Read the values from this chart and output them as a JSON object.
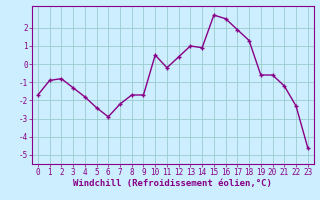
{
  "x": [
    0,
    1,
    2,
    3,
    4,
    5,
    6,
    7,
    8,
    9,
    10,
    11,
    12,
    13,
    14,
    15,
    16,
    17,
    18,
    19,
    20,
    21,
    22,
    23
  ],
  "y": [
    -1.7,
    -0.9,
    -0.8,
    -1.3,
    -1.8,
    -2.4,
    -2.9,
    -2.2,
    -1.7,
    -1.7,
    0.5,
    -0.2,
    0.4,
    1.0,
    0.9,
    2.7,
    2.5,
    1.9,
    1.3,
    -0.6,
    -0.6,
    -1.2,
    -2.3,
    -4.6
  ],
  "line_color": "#880088",
  "marker": "+",
  "marker_size": 3,
  "bg_color": "#cceeff",
  "grid_color": "#99cccc",
  "xlabel": "Windchill (Refroidissement éolien,°C)",
  "ylim": [
    -5.5,
    3.2
  ],
  "yticks": [
    -5,
    -4,
    -3,
    -2,
    -1,
    0,
    1,
    2
  ],
  "xticks": [
    0,
    1,
    2,
    3,
    4,
    5,
    6,
    7,
    8,
    9,
    10,
    11,
    12,
    13,
    14,
    15,
    16,
    17,
    18,
    19,
    20,
    21,
    22,
    23
  ],
  "xtick_labels": [
    "0",
    "1",
    "2",
    "3",
    "4",
    "5",
    "6",
    "7",
    "8",
    "9",
    "10",
    "11",
    "12",
    "13",
    "14",
    "15",
    "16",
    "17",
    "18",
    "19",
    "20",
    "21",
    "22",
    "23"
  ],
  "tick_fontsize": 5.5,
  "xlabel_fontsize": 6.5,
  "line_width": 1.0
}
